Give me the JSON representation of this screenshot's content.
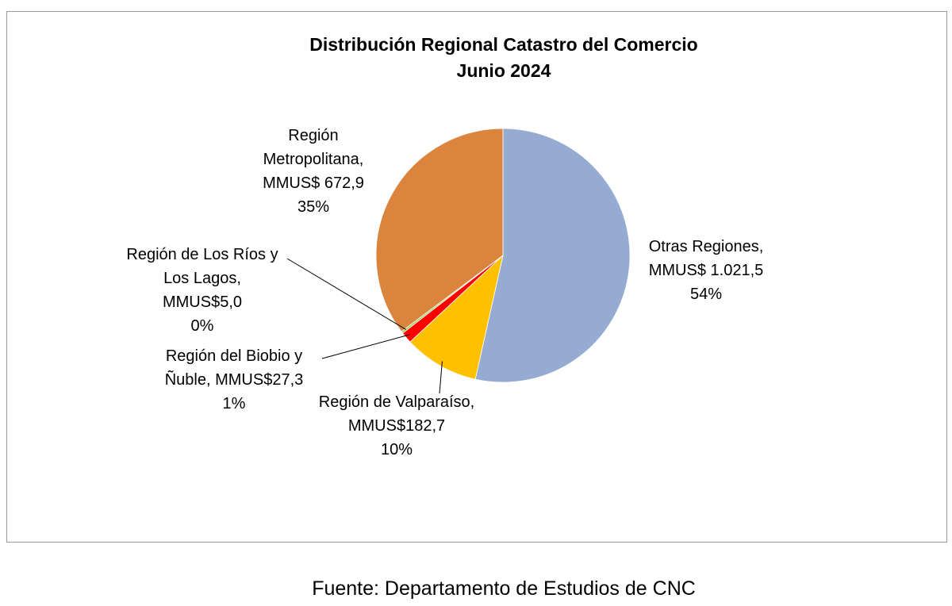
{
  "chart_data": {
    "type": "pie",
    "title": "Distribución Regional Catastro del Comercio",
    "subtitle": "Junio 2024",
    "slices": [
      {
        "name": "Otras Regiones,",
        "value_text": "MMUS$ 1.021,5",
        "value": 1021.5,
        "percent": "54%",
        "color": "#95abd2"
      },
      {
        "name": "Región de Valparaíso,",
        "value_text": "MMUS$182,7",
        "value": 182.7,
        "percent": "10%",
        "color": "#ffc000"
      },
      {
        "name": "Región del Biobio y",
        "value_text": "Ñuble, MMUS$27,3",
        "value": 27.3,
        "percent": "1%",
        "color": "#ff0000"
      },
      {
        "name": "Región de Los Ríos y",
        "value_text": "Los Lagos,",
        "value_extra": "MMUS$5,0",
        "value": 5.0,
        "percent": "0%",
        "color": "#92d050"
      },
      {
        "name": "Región",
        "value_text": "Metropolitana,",
        "value_extra": "MMUS$ 672,9",
        "value": 672.9,
        "percent": "35%",
        "color": "#db843d"
      }
    ],
    "legend": "none"
  },
  "source": "Fuente: Departamento de Estudios de CNC"
}
